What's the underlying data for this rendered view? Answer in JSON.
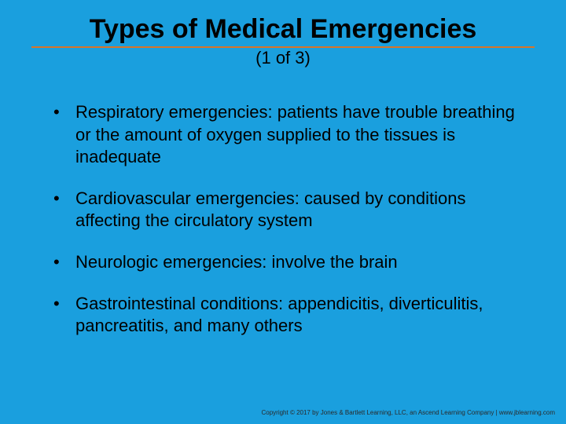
{
  "slide": {
    "title": "Types of Medical Emergencies",
    "subtitle": "(1 of 3)",
    "background_color": "#1a9fde",
    "title_underline_color": "#d97528",
    "title_color": "#000000",
    "title_fontsize": 34,
    "subtitle_fontsize": 22,
    "bullet_fontsize": 22,
    "bullets": [
      "Respiratory emergencies: patients have trouble breathing or the amount of oxygen supplied to the tissues is inadequate",
      "Cardiovascular emergencies: caused by conditions affecting the circulatory system",
      "Neurologic emergencies: involve the brain",
      "Gastrointestinal conditions: appendicitis, diverticulitis, pancreatitis, and many others"
    ],
    "copyright": "Copyright © 2017 by Jones & Bartlett Learning, LLC, an Ascend Learning Company | www.jblearning.com"
  }
}
